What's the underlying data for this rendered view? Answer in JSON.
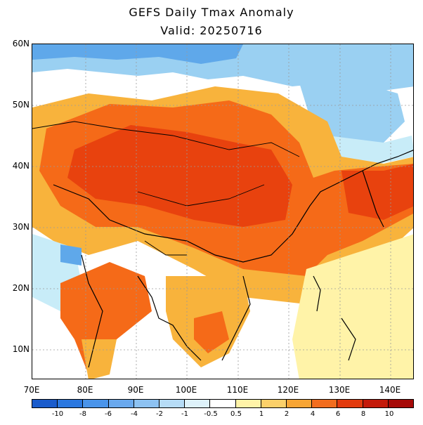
{
  "title": "GEFS Daily Tmax Anomaly",
  "subtitle": "Valid: 20250716",
  "map": {
    "lat_labels": [
      "60N",
      "50N",
      "40N",
      "30N",
      "20N",
      "10N"
    ],
    "lon_labels": [
      "70E",
      "80E",
      "90E",
      "100E",
      "110E",
      "120E",
      "130E",
      "140E"
    ],
    "grid": "dotted",
    "colors": {
      "strong_warm": "#e8420e",
      "warm": "#f56a18",
      "moderate": "#f8b33c",
      "mild": "#fff3a8",
      "neutral": "#ffffff",
      "cool": "#c8ecf8",
      "cold": "#9ad0f2",
      "colder": "#5fa8ea"
    }
  },
  "colorbar": {
    "labels": [
      "-10",
      "-8",
      "-6",
      "-4",
      "-2",
      "-1",
      "-0.5",
      "0.5",
      "1",
      "2",
      "4",
      "6",
      "8",
      "10"
    ],
    "colors": [
      "#1a5ccc",
      "#2b78e0",
      "#4a94ea",
      "#6aa9ee",
      "#8dc2f2",
      "#b6dcf6",
      "#def2fa",
      "#ffffff",
      "#fff3a8",
      "#fbd06a",
      "#f7a535",
      "#f26d1e",
      "#e23b0e",
      "#c41a0a",
      "#a60a08"
    ]
  }
}
